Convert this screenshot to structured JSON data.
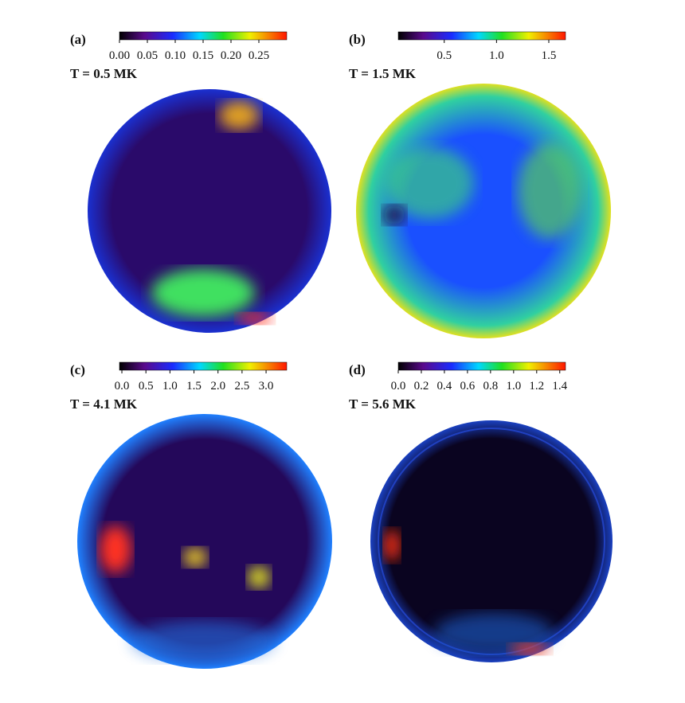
{
  "panels": [
    {
      "label": "(a)",
      "title": "T = 0.5 MK",
      "colorbar": {
        "lim": [
          0,
          0.3
        ],
        "ticks": [
          {
            "value": 0,
            "label": "0.00"
          },
          {
            "value": 0.05,
            "label": "0.05"
          },
          {
            "value": 0.1,
            "label": "0.10"
          },
          {
            "value": 0.15,
            "label": "0.15"
          },
          {
            "value": 0.2,
            "label": "0.20"
          },
          {
            "value": 0.25,
            "label": "0.25"
          }
        ]
      }
    },
    {
      "label": "(b)",
      "title": "T = 1.5 MK",
      "colorbar": {
        "lim": [
          0.06,
          1.66
        ],
        "ticks": [
          0.5,
          {
            "value": 1,
            "label": "1.0"
          },
          1.5
        ]
      }
    },
    {
      "label": "(c)",
      "title": "T = 4.1 MK",
      "colorbar": {
        "lim": [
          -0.05,
          3.43
        ],
        "ticks": [
          {
            "value": 0,
            "label": "0.0"
          },
          0.5,
          {
            "value": 1,
            "label": "1.0"
          },
          1.5,
          {
            "value": 2,
            "label": "2.0"
          },
          2.5,
          {
            "value": 3,
            "label": "3.0"
          }
        ]
      }
    },
    {
      "label": "(d)",
      "title": "T = 5.6 MK",
      "colorbar": {
        "lim": [
          0,
          1.45
        ],
        "ticks": [
          {
            "value": 0,
            "label": "0.0"
          },
          0.2,
          0.4,
          0.6,
          0.8,
          {
            "value": 1,
            "label": "1.0"
          },
          1.2,
          1.4
        ]
      }
    }
  ]
}
